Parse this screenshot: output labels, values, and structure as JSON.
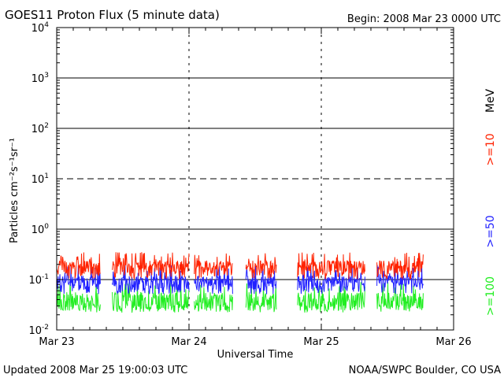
{
  "header": {
    "title": "GOES11 Proton Flux (5 minute data)",
    "begin": "Begin: 2008 Mar 23 0000 UTC"
  },
  "footer": {
    "updated": "Updated 2008 Mar 25 19:00:03 UTC",
    "credit": "NOAA/SWPC Boulder, CO USA"
  },
  "chart_data": {
    "type": "line",
    "title": "GOES11 Proton Flux (5 minute data)",
    "xlabel": "Universal Time",
    "ylabel": "Particles cm⁻²s⁻¹sr⁻¹",
    "y_scale": "log",
    "ylim": [
      0.01,
      10000
    ],
    "xlim_days": [
      0,
      3
    ],
    "grid": true,
    "x_ticks": [
      {
        "day": 0,
        "label": "Mar 23"
      },
      {
        "day": 1,
        "label": "Mar 24"
      },
      {
        "day": 2,
        "label": "Mar 25"
      },
      {
        "day": 3,
        "label": "Mar 26"
      }
    ],
    "y_ticks": [
      {
        "value": 0.01,
        "base": "10",
        "exp": "-2"
      },
      {
        "value": 0.1,
        "base": "10",
        "exp": "-1"
      },
      {
        "value": 1,
        "base": "10",
        "exp": "0"
      },
      {
        "value": 10,
        "base": "10",
        "exp": "1"
      },
      {
        "value": 100,
        "base": "10",
        "exp": "2"
      },
      {
        "value": 1000,
        "base": "10",
        "exp": "3"
      },
      {
        "value": 10000,
        "base": "10",
        "exp": "4"
      }
    ],
    "legend_unit": "MeV",
    "series": [
      {
        "name": ">=10",
        "color": "#ff2200",
        "baseline": 0.17,
        "spike": 0.35
      },
      {
        "name": ">=50",
        "color": "#2222ff",
        "baseline": 0.085,
        "spike": 0.2
      },
      {
        "name": ">=100",
        "color": "#22ee22",
        "baseline": 0.04,
        "spike": 0.09
      }
    ],
    "data_segments_days": [
      [
        0.0,
        0.33
      ],
      [
        0.42,
        1.0
      ],
      [
        1.04,
        1.33
      ],
      [
        1.43,
        1.66
      ],
      [
        1.82,
        2.33
      ],
      [
        2.42,
        2.77
      ]
    ]
  }
}
